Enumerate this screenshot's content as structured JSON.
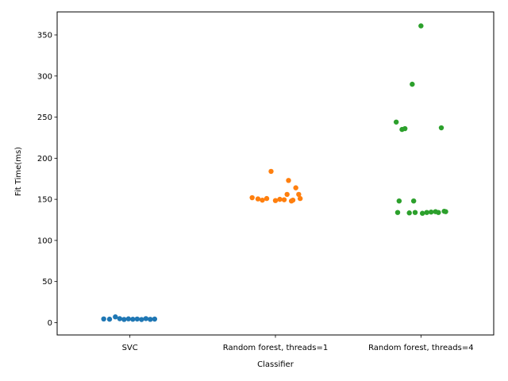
{
  "chart_data": {
    "type": "scatter",
    "style": "strip",
    "title": "",
    "xlabel": "Classifier",
    "ylabel": "Fit Time(ms)",
    "ylim": [
      -15,
      378
    ],
    "yticks": [
      0,
      50,
      100,
      150,
      200,
      250,
      300,
      350
    ],
    "grid": false,
    "categories": [
      "SVC",
      "Random forest, threads=1",
      "Random forest, threads=4"
    ],
    "series": [
      {
        "category": "SVC",
        "color": "#1f77b4",
        "points": [
          {
            "x": -0.18,
            "y": 4.5
          },
          {
            "x": -0.14,
            "y": 4.2
          },
          {
            "x": -0.1,
            "y": 7.0
          },
          {
            "x": -0.07,
            "y": 4.8
          },
          {
            "x": -0.04,
            "y": 3.9
          },
          {
            "x": -0.01,
            "y": 4.6
          },
          {
            "x": 0.02,
            "y": 4.1
          },
          {
            "x": 0.05,
            "y": 4.4
          },
          {
            "x": 0.08,
            "y": 3.8
          },
          {
            "x": 0.11,
            "y": 4.9
          },
          {
            "x": 0.14,
            "y": 4.0
          },
          {
            "x": 0.17,
            "y": 4.3
          }
        ]
      },
      {
        "category": "Random forest, threads=1",
        "color": "#ff7f0e",
        "points": [
          {
            "x": -0.16,
            "y": 152.0
          },
          {
            "x": -0.12,
            "y": 150.5
          },
          {
            "x": -0.09,
            "y": 149.0
          },
          {
            "x": -0.06,
            "y": 151.0
          },
          {
            "x": -0.03,
            "y": 184.0
          },
          {
            "x": 0.0,
            "y": 148.5
          },
          {
            "x": 0.03,
            "y": 150.0
          },
          {
            "x": 0.06,
            "y": 149.5
          },
          {
            "x": 0.08,
            "y": 156.0
          },
          {
            "x": 0.09,
            "y": 173.0
          },
          {
            "x": 0.11,
            "y": 148.0
          },
          {
            "x": 0.14,
            "y": 164.0
          },
          {
            "x": 0.16,
            "y": 156.0
          },
          {
            "x": 0.17,
            "y": 151.0
          },
          {
            "x": 0.12,
            "y": 149.0
          }
        ]
      },
      {
        "category": "Random forest, threads=4",
        "color": "#2ca02c",
        "points": [
          {
            "x": -0.17,
            "y": 244.0
          },
          {
            "x": -0.16,
            "y": 134.0
          },
          {
            "x": -0.15,
            "y": 148.0
          },
          {
            "x": -0.13,
            "y": 235.0
          },
          {
            "x": -0.11,
            "y": 236.0
          },
          {
            "x": -0.08,
            "y": 133.5
          },
          {
            "x": -0.06,
            "y": 290.0
          },
          {
            "x": -0.05,
            "y": 148.0
          },
          {
            "x": -0.04,
            "y": 134.0
          },
          {
            "x": 0.0,
            "y": 361.0
          },
          {
            "x": 0.01,
            "y": 133.0
          },
          {
            "x": 0.04,
            "y": 134.0
          },
          {
            "x": 0.07,
            "y": 134.5
          },
          {
            "x": 0.1,
            "y": 135.0
          },
          {
            "x": 0.12,
            "y": 134.0
          },
          {
            "x": 0.14,
            "y": 237.0
          },
          {
            "x": 0.16,
            "y": 135.5
          },
          {
            "x": 0.17,
            "y": 135.0
          }
        ]
      }
    ]
  }
}
